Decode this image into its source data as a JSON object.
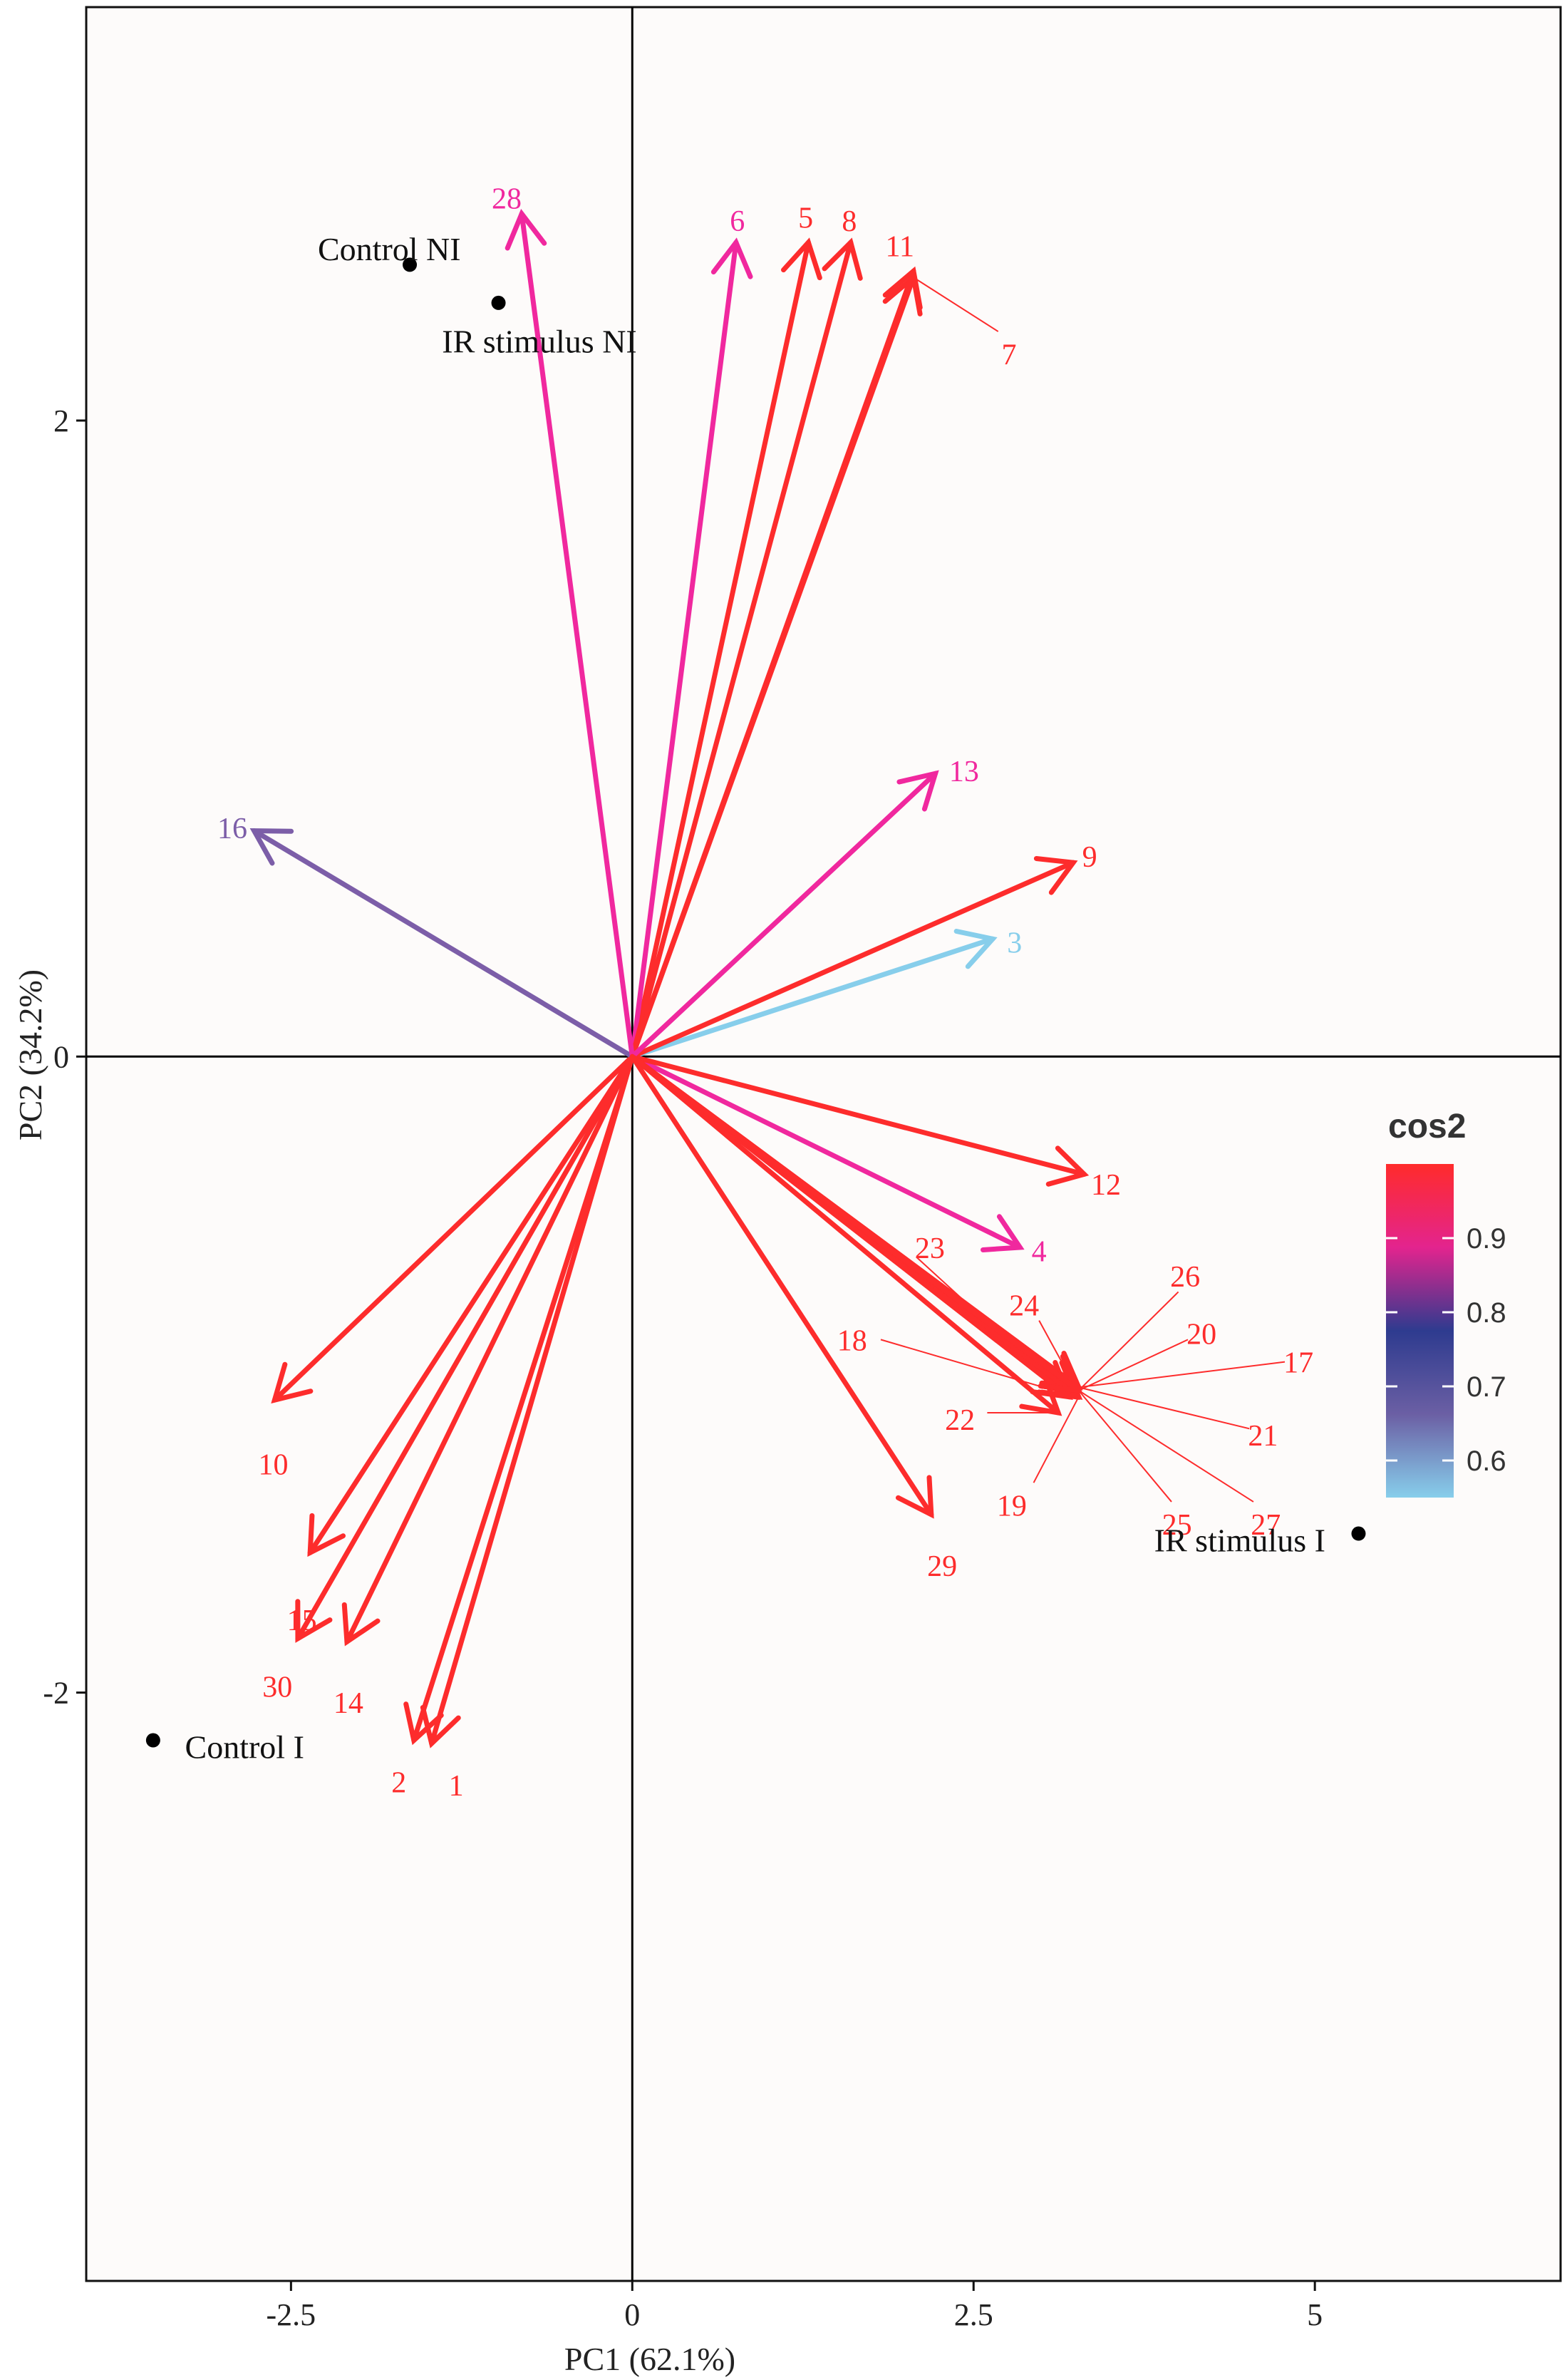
{
  "chart_data": {
    "type": "biplot",
    "xlabel": "PC1 (62.1%)",
    "ylabel": "PC2 (34.2%)",
    "xlim": [
      -4.0,
      6.8
    ],
    "ylim": [
      -3.85,
      3.3
    ],
    "x_ticks": [
      {
        "value": -2.5,
        "label": "-2.5"
      },
      {
        "value": 0,
        "label": "0"
      },
      {
        "value": 2.5,
        "label": "2.5"
      },
      {
        "value": 5,
        "label": "5"
      }
    ],
    "y_ticks": [
      {
        "value": 2,
        "label": "2"
      },
      {
        "value": 0,
        "label": "0"
      },
      {
        "value": -2,
        "label": "-2"
      }
    ],
    "vectors": [
      {
        "id": "1",
        "label": "1",
        "x": -1.47,
        "y": -2.16,
        "cos2": 0.98,
        "color": "#fd2c2c",
        "label_x": -1.29,
        "label_y": -2.29
      },
      {
        "id": "2",
        "label": "2",
        "x": -1.6,
        "y": -2.15,
        "cos2": 0.98,
        "color": "#fd2c2c",
        "label_x": -1.71,
        "label_y": -2.28
      },
      {
        "id": "3",
        "label": "3",
        "x": 2.64,
        "y": 0.37,
        "cos2": 0.6,
        "color": "#87ceeb",
        "label_x": 2.8,
        "label_y": 0.36
      },
      {
        "id": "4",
        "label": "4",
        "x": 2.84,
        "y": -0.6,
        "cos2": 0.9,
        "color": "#f0289e",
        "label_x": 2.98,
        "label_y": -0.61
      },
      {
        "id": "5",
        "label": "5",
        "x": 1.29,
        "y": 2.56,
        "cos2": 0.98,
        "color": "#fd2c2c",
        "label_x": 1.27,
        "label_y": 2.64
      },
      {
        "id": "6",
        "label": "6",
        "x": 0.76,
        "y": 2.56,
        "cos2": 0.9,
        "color": "#f0289e",
        "label_x": 0.77,
        "label_y": 2.63
      },
      {
        "id": "7",
        "label": "7",
        "x": 2.06,
        "y": 2.45,
        "cos2": 0.98,
        "color": "#fd2c2c",
        "label_x": 2.76,
        "label_y": 2.21
      },
      {
        "id": "8",
        "label": "8",
        "x": 1.6,
        "y": 2.56,
        "cos2": 0.98,
        "color": "#fd2c2c",
        "label_x": 1.59,
        "label_y": 2.63
      },
      {
        "id": "9",
        "label": "9",
        "x": 3.23,
        "y": 0.61,
        "cos2": 0.98,
        "color": "#fd2c2c",
        "label_x": 3.35,
        "label_y": 0.63
      },
      {
        "id": "10",
        "label": "10",
        "x": -2.62,
        "y": -1.08,
        "cos2": 0.98,
        "color": "#fd2c2c",
        "label_x": -2.63,
        "label_y": -1.28
      },
      {
        "id": "11",
        "label": "11",
        "x": 2.06,
        "y": 2.47,
        "cos2": 0.98,
        "color": "#fd2c2c",
        "label_x": 1.96,
        "label_y": 2.55
      },
      {
        "id": "12",
        "label": "12",
        "x": 3.31,
        "y": -0.37,
        "cos2": 0.98,
        "color": "#fd2c2c",
        "label_x": 3.47,
        "label_y": -0.4
      },
      {
        "id": "13",
        "label": "13",
        "x": 2.22,
        "y": 0.89,
        "cos2": 0.9,
        "color": "#f0289e",
        "label_x": 2.43,
        "label_y": 0.9
      },
      {
        "id": "14",
        "label": "14",
        "x": -2.09,
        "y": -1.84,
        "cos2": 0.98,
        "color": "#fd2c2c",
        "label_x": -2.08,
        "label_y": -2.03
      },
      {
        "id": "15",
        "label": "15",
        "x": -2.36,
        "y": -1.56,
        "cos2": 0.98,
        "color": "#fd2c2c",
        "label_x": -2.42,
        "label_y": -1.77
      },
      {
        "id": "16",
        "label": "16",
        "x": -2.77,
        "y": 0.71,
        "cos2": 0.72,
        "color": "#7c5ea8",
        "label_x": -2.93,
        "label_y": 0.72
      },
      {
        "id": "17",
        "label": "17",
        "x": 3.27,
        "y": -1.04,
        "cos2": 0.98,
        "color": "#fd2c2c",
        "label_x": 4.88,
        "label_y": -0.96
      },
      {
        "id": "18",
        "label": "18",
        "x": 3.25,
        "y": -1.07,
        "cos2": 0.98,
        "color": "#fd2c2c",
        "label_x": 1.61,
        "label_y": -0.89
      },
      {
        "id": "19",
        "label": "19",
        "x": 3.27,
        "y": -1.07,
        "cos2": 0.98,
        "color": "#fd2c2c",
        "label_x": 2.78,
        "label_y": -1.41
      },
      {
        "id": "20",
        "label": "20",
        "x": 3.27,
        "y": -1.05,
        "cos2": 0.98,
        "color": "#fd2c2c",
        "label_x": 4.17,
        "label_y": -0.87
      },
      {
        "id": "21",
        "label": "21",
        "x": 3.27,
        "y": -1.04,
        "cos2": 0.98,
        "color": "#fd2c2c",
        "label_x": 4.62,
        "label_y": -1.19
      },
      {
        "id": "22",
        "label": "22",
        "x": 3.12,
        "y": -1.12,
        "cos2": 0.98,
        "color": "#fd2c2c",
        "label_x": 2.4,
        "label_y": -1.14
      },
      {
        "id": "23",
        "label": "23",
        "x": 3.2,
        "y": -1.07,
        "cos2": 0.98,
        "color": "#fd2c2c",
        "label_x": 2.18,
        "label_y": -0.6
      },
      {
        "id": "24",
        "label": "24",
        "x": 3.26,
        "y": -1.05,
        "cos2": 0.98,
        "color": "#fd2c2c",
        "label_x": 2.87,
        "label_y": -0.78
      },
      {
        "id": "25",
        "label": "25",
        "x": 3.27,
        "y": -1.05,
        "cos2": 0.98,
        "color": "#fd2c2c",
        "label_x": 3.99,
        "label_y": -1.47
      },
      {
        "id": "26",
        "label": "26",
        "x": 3.27,
        "y": -1.05,
        "cos2": 0.98,
        "color": "#fd2c2c",
        "label_x": 4.05,
        "label_y": -0.69
      },
      {
        "id": "27",
        "label": "27",
        "x": 3.27,
        "y": -1.05,
        "cos2": 0.98,
        "color": "#fd2c2c",
        "label_x": 4.64,
        "label_y": -1.47
      },
      {
        "id": "28",
        "label": "28",
        "x": -0.81,
        "y": 2.65,
        "cos2": 0.9,
        "color": "#f0289e",
        "label_x": -0.92,
        "label_y": 2.7
      },
      {
        "id": "29",
        "label": "29",
        "x": 2.19,
        "y": -1.44,
        "cos2": 0.98,
        "color": "#fd2c2c",
        "label_x": 2.27,
        "label_y": -1.6
      },
      {
        "id": "30",
        "label": "30",
        "x": -2.45,
        "y": -1.83,
        "cos2": 0.98,
        "color": "#fd2c2c",
        "label_x": -2.6,
        "label_y": -1.98
      }
    ],
    "label_leaders": [
      {
        "id": "7",
        "from_x": 2.06,
        "from_y": 2.45,
        "to_x": 2.68,
        "to_y": 2.28
      },
      {
        "id": "17",
        "from_x": 3.27,
        "from_y": -1.04,
        "to_x": 4.78,
        "to_y": -0.96
      },
      {
        "id": "18",
        "from_x": 3.25,
        "from_y": -1.07,
        "to_x": 1.82,
        "to_y": -0.89
      },
      {
        "id": "19",
        "from_x": 3.27,
        "from_y": -1.07,
        "to_x": 2.94,
        "to_y": -1.34
      },
      {
        "id": "20",
        "from_x": 3.27,
        "from_y": -1.05,
        "to_x": 4.07,
        "to_y": -0.89
      },
      {
        "id": "21",
        "from_x": 3.27,
        "from_y": -1.04,
        "to_x": 4.52,
        "to_y": -1.17
      },
      {
        "id": "22",
        "from_x": 3.12,
        "from_y": -1.12,
        "to_x": 2.6,
        "to_y": -1.12
      },
      {
        "id": "23",
        "from_x": 3.2,
        "from_y": -1.07,
        "to_x": 2.08,
        "to_y": -0.63
      },
      {
        "id": "24",
        "from_x": 3.26,
        "from_y": -1.05,
        "to_x": 2.98,
        "to_y": -0.83
      },
      {
        "id": "25",
        "from_x": 3.27,
        "from_y": -1.05,
        "to_x": 3.95,
        "to_y": -1.4
      },
      {
        "id": "26",
        "from_x": 3.27,
        "from_y": -1.05,
        "to_x": 4.0,
        "to_y": -0.74
      },
      {
        "id": "27",
        "from_x": 3.27,
        "from_y": -1.05,
        "to_x": 4.55,
        "to_y": -1.4
      }
    ],
    "individuals": [
      {
        "id": "control-ni",
        "label": "Control NI",
        "x": -1.63,
        "y": 2.49,
        "label_x": -1.78,
        "label_y": 2.54
      },
      {
        "id": "ir-stimulus-ni",
        "label": "IR stimulus NI",
        "x": -0.98,
        "y": 2.37,
        "label_x": -0.68,
        "label_y": 2.25
      },
      {
        "id": "control-i",
        "label": "Control I",
        "x": -3.51,
        "y": -2.15,
        "label_x": -2.84,
        "label_y": -2.17
      },
      {
        "id": "ir-stimulus-i",
        "label": "IR stimulus I",
        "x": 5.32,
        "y": -1.5,
        "label_x": 4.45,
        "label_y": -1.52
      }
    ],
    "legend": {
      "title": "cos2",
      "position": "right",
      "min": 0.55,
      "max": 1.0,
      "ticks": [
        {
          "value": 0.9,
          "label": "0.9"
        },
        {
          "value": 0.8,
          "label": "0.8"
        },
        {
          "value": 0.7,
          "label": "0.7"
        },
        {
          "value": 0.6,
          "label": "0.6"
        }
      ],
      "colors": [
        "#87ceeb",
        "#6b5fa4",
        "#2e3b8f",
        "#e3248e",
        "#ff2b2b"
      ]
    },
    "colors": {
      "panel_background": "#fdfbfa",
      "axis_line": "#000000",
      "point": "#000000"
    }
  }
}
